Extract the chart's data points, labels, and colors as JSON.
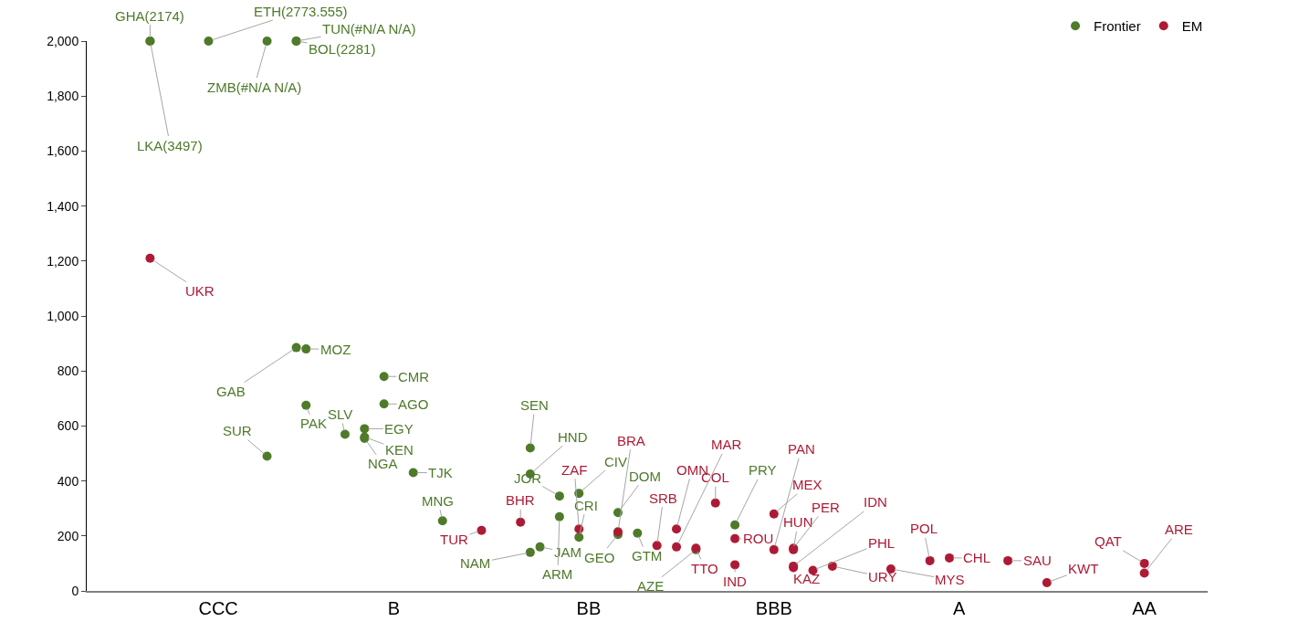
{
  "chart_data": {
    "type": "scatter",
    "legend": "top right",
    "marker": "circle",
    "grid": false,
    "categories": [
      null,
      null,
      null,
      null,
      null,
      null,
      null,
      null,
      null,
      null,
      null,
      null,
      null,
      "CCC",
      null,
      null,
      null,
      null,
      null,
      null,
      null,
      null,
      null,
      null,
      null,
      null,
      null,
      null,
      null,
      null,
      null,
      "B",
      null,
      null,
      null,
      null,
      null,
      null,
      null,
      null,
      null,
      null,
      null,
      null,
      null,
      null,
      null,
      null,
      null,
      null,
      null,
      "BB",
      null,
      null,
      null,
      null,
      null,
      null,
      null,
      null,
      null,
      null,
      null,
      null,
      null,
      null,
      null,
      null,
      null,
      null,
      "BBB",
      null,
      null,
      null,
      null,
      null,
      null,
      null,
      null,
      null,
      null,
      null,
      null,
      null,
      null,
      null,
      null,
      null,
      null,
      "A",
      null,
      null,
      null,
      null,
      null,
      null,
      null,
      null,
      null,
      null,
      null,
      null,
      null,
      null,
      null,
      null,
      null,
      null,
      "AA",
      null,
      null,
      null,
      null,
      null,
      null
    ],
    "ylim": [
      0,
      2000
    ],
    "yticks": [
      0,
      200,
      400,
      600,
      800,
      {
        "value": 1000,
        "label": "1,000"
      },
      {
        "value": 1200,
        "label": "1,200"
      },
      {
        "value": 1400,
        "label": "1,400"
      },
      {
        "value": 1600,
        "label": "1,600"
      },
      {
        "value": 1800,
        "label": "1,800"
      },
      {
        "value": 2000,
        "label": "2,000"
      }
    ],
    "series": [
      {
        "name": "Frontier",
        "color": "#4e7a2a",
        "values": [
          null,
          null,
          null,
          null,
          null,
          null,
          2000,
          null,
          null,
          null,
          null,
          null,
          2000,
          null,
          null,
          null,
          null,
          null,
          2000,
          null,
          null,
          2000,
          880,
          null,
          null,
          null,
          570,
          null,
          590,
          null,
          680,
          null,
          null,
          430,
          null,
          null,
          255,
          null,
          null,
          null,
          null,
          null,
          null,
          null,
          null,
          520,
          160,
          null,
          345,
          null,
          355,
          null,
          null,
          null,
          285,
          null,
          210,
          null,
          null,
          null,
          null,
          null,
          150,
          null,
          null,
          null,
          240,
          null,
          null,
          null,
          null,
          null,
          null,
          null,
          null,
          null,
          null,
          null,
          null,
          null,
          null,
          null,
          null,
          null,
          null,
          null,
          null,
          null,
          null,
          null,
          null,
          null,
          null,
          null,
          null,
          null,
          null,
          null,
          null,
          null,
          null,
          null,
          null,
          null,
          null,
          null,
          null,
          null,
          null,
          null,
          null,
          null,
          null,
          null,
          null
        ],
        "value_labels": [
          null,
          null,
          null,
          null,
          null,
          null,
          "GHA(2174)",
          null,
          null,
          null,
          null,
          null,
          "ETH(2773.555)",
          null,
          null,
          null,
          null,
          null,
          "ZMB(#N/A N/A)",
          null,
          null,
          "BOL(2281)",
          "MOZ",
          null,
          null,
          null,
          "SLV",
          null,
          "EGY",
          null,
          "AGO",
          null,
          null,
          "TJK",
          null,
          null,
          "MNG",
          null,
          null,
          null,
          null,
          null,
          null,
          null,
          null,
          "SEN",
          "JAM",
          null,
          "JOR",
          null,
          "CIV",
          null,
          null,
          null,
          "DOM",
          null,
          "GTM",
          null,
          null,
          null,
          null,
          null,
          "AZE",
          null,
          null,
          null,
          "PRY",
          null,
          null,
          null,
          null,
          null,
          null,
          null,
          null,
          null,
          null,
          null,
          null,
          null,
          null,
          null,
          null,
          null,
          null,
          null,
          null,
          null,
          null,
          null,
          null,
          null,
          null,
          null,
          null,
          null,
          null,
          null,
          null,
          null,
          null,
          null,
          null,
          null,
          null,
          null,
          null,
          null,
          null,
          null,
          null,
          null,
          null,
          null,
          null
        ]
      },
      {
        "color": "#4e7a2a",
        "values": [
          null,
          null,
          null,
          null,
          null,
          null,
          2000,
          null,
          null,
          null,
          null,
          null,
          null,
          null,
          null,
          null,
          null,
          null,
          490,
          null,
          null,
          2000,
          675,
          null,
          null,
          null,
          null,
          null,
          560,
          null,
          780,
          null,
          null,
          null,
          null,
          null,
          null,
          null,
          null,
          null,
          null,
          null,
          null,
          null,
          null,
          425,
          null,
          null,
          270,
          null,
          195,
          null,
          null,
          null,
          205,
          null,
          null,
          null,
          null,
          null,
          null,
          null,
          null,
          null,
          null,
          null,
          null,
          null,
          null,
          null,
          null,
          null,
          null,
          null,
          null,
          null,
          null,
          null,
          null,
          null,
          null,
          null,
          null,
          null,
          null,
          null,
          null,
          null,
          null,
          null,
          null,
          null,
          null,
          null,
          null,
          null,
          null,
          null,
          null,
          null,
          null,
          null,
          null,
          null,
          null,
          null,
          null,
          null,
          null,
          null,
          null,
          null,
          null,
          null,
          null
        ],
        "value_labels": [
          null,
          null,
          null,
          null,
          null,
          null,
          "LKA(3497)",
          null,
          null,
          null,
          null,
          null,
          null,
          null,
          null,
          null,
          null,
          null,
          "SUR",
          null,
          null,
          "TUN(#N/A N/A)",
          "PAK",
          null,
          null,
          null,
          null,
          null,
          "KEN",
          null,
          "CMR",
          null,
          null,
          null,
          null,
          null,
          null,
          null,
          null,
          null,
          null,
          null,
          null,
          null,
          null,
          "HND",
          null,
          null,
          "ARM",
          null,
          "CRI",
          null,
          null,
          null,
          "GEO",
          null,
          null,
          null,
          null,
          null,
          null,
          null,
          null,
          null,
          null,
          null,
          null,
          null,
          null,
          null,
          null,
          null,
          null,
          null,
          null,
          null,
          null,
          null,
          null,
          null,
          null,
          null,
          null,
          null,
          null,
          null,
          null,
          null,
          null,
          null,
          null,
          null,
          null,
          null,
          null,
          null,
          null,
          null,
          null,
          null,
          null,
          null,
          null,
          null,
          null,
          null,
          null,
          null,
          null,
          null,
          null,
          null,
          null,
          null,
          null
        ]
      },
      {
        "color": "#4e7a2a",
        "values": [
          null,
          null,
          null,
          null,
          null,
          null,
          null,
          null,
          null,
          null,
          null,
          null,
          null,
          null,
          null,
          null,
          null,
          null,
          null,
          null,
          null,
          885,
          null,
          null,
          null,
          null,
          null,
          null,
          555,
          null,
          null,
          null,
          null,
          null,
          null,
          null,
          null,
          null,
          null,
          null,
          null,
          null,
          null,
          null,
          null,
          140,
          null,
          null,
          null,
          null,
          null,
          null,
          null,
          null,
          null,
          null,
          null,
          null,
          null,
          null,
          null,
          null,
          null,
          null,
          null,
          null,
          null,
          null,
          null,
          null,
          null,
          null,
          null,
          null,
          null,
          null,
          null,
          null,
          null,
          null,
          null,
          null,
          null,
          null,
          null,
          null,
          null,
          null,
          null,
          null,
          null,
          null,
          null,
          null,
          null,
          null,
          null,
          null,
          null,
          null,
          null,
          null,
          null,
          null,
          null,
          null,
          null,
          null,
          null,
          null,
          null,
          null,
          null,
          null,
          null
        ],
        "value_labels": [
          null,
          null,
          null,
          null,
          null,
          null,
          null,
          null,
          null,
          null,
          null,
          null,
          null,
          null,
          null,
          null,
          null,
          null,
          null,
          null,
          null,
          "GAB",
          null,
          null,
          null,
          null,
          null,
          null,
          "NGA",
          null,
          null,
          null,
          null,
          null,
          null,
          null,
          null,
          null,
          null,
          null,
          null,
          null,
          null,
          null,
          null,
          "NAM",
          null,
          null,
          null,
          null,
          null,
          null,
          null,
          null,
          null,
          null,
          null,
          null,
          null,
          null,
          null,
          null,
          null,
          null,
          null,
          null,
          null,
          null,
          null,
          null,
          null,
          null,
          null,
          null,
          null,
          null,
          null,
          null,
          null,
          null,
          null,
          null,
          null,
          null,
          null,
          null,
          null,
          null,
          null,
          null,
          null,
          null,
          null,
          null,
          null,
          null,
          null,
          null,
          null,
          null,
          null,
          null,
          null,
          null,
          null,
          null,
          null,
          null,
          null,
          null,
          null,
          null,
          null,
          null,
          null
        ]
      },
      {
        "name": "EM",
        "color": "#ad1a35",
        "values": [
          null,
          null,
          null,
          null,
          null,
          null,
          1210,
          null,
          null,
          null,
          null,
          null,
          null,
          null,
          null,
          null,
          null,
          null,
          null,
          null,
          null,
          null,
          null,
          null,
          null,
          null,
          null,
          null,
          null,
          null,
          null,
          null,
          null,
          null,
          null,
          null,
          null,
          null,
          null,
          null,
          220,
          null,
          null,
          null,
          250,
          null,
          null,
          null,
          null,
          null,
          225,
          null,
          null,
          null,
          215,
          null,
          null,
          null,
          165,
          null,
          225,
          null,
          155,
          null,
          320,
          null,
          190,
          null,
          null,
          null,
          280,
          null,
          150,
          null,
          75,
          null,
          90,
          null,
          null,
          null,
          null,
          null,
          80,
          null,
          null,
          null,
          110,
          null,
          120,
          null,
          null,
          null,
          null,
          null,
          110,
          null,
          null,
          null,
          30,
          null,
          null,
          null,
          null,
          null,
          null,
          null,
          null,
          null,
          100,
          null,
          null,
          null,
          null,
          null,
          null
        ],
        "value_labels": [
          null,
          null,
          null,
          null,
          null,
          null,
          "UKR",
          null,
          null,
          null,
          null,
          null,
          null,
          null,
          null,
          null,
          null,
          null,
          null,
          null,
          null,
          null,
          null,
          null,
          null,
          null,
          null,
          null,
          null,
          null,
          null,
          null,
          null,
          null,
          null,
          null,
          null,
          null,
          null,
          null,
          "TUR",
          null,
          null,
          null,
          "BHR",
          null,
          null,
          null,
          null,
          null,
          "ZAF",
          null,
          null,
          null,
          "BRA",
          null,
          null,
          null,
          "SRB",
          null,
          "OMN",
          null,
          "TTO",
          null,
          "COL",
          null,
          "ROU",
          null,
          null,
          null,
          "MEX",
          null,
          "HUN",
          null,
          "PHL",
          null,
          "URY",
          null,
          null,
          null,
          null,
          null,
          "MYS",
          null,
          null,
          null,
          "POL",
          null,
          "CHL",
          null,
          null,
          null,
          null,
          null,
          "SAU",
          null,
          null,
          null,
          "KWT",
          null,
          null,
          null,
          null,
          null,
          null,
          null,
          null,
          null,
          "QAT",
          null,
          null,
          null,
          null,
          null,
          null
        ]
      },
      {
        "color": "#ad1a35",
        "values": [
          null,
          null,
          null,
          null,
          null,
          null,
          null,
          null,
          null,
          null,
          null,
          null,
          null,
          null,
          null,
          null,
          null,
          null,
          null,
          null,
          null,
          null,
          null,
          null,
          null,
          null,
          null,
          null,
          null,
          null,
          null,
          null,
          null,
          null,
          null,
          null,
          null,
          null,
          null,
          null,
          null,
          null,
          null,
          null,
          null,
          null,
          null,
          null,
          null,
          null,
          null,
          null,
          null,
          null,
          null,
          null,
          null,
          null,
          null,
          null,
          160,
          null,
          null,
          null,
          null,
          null,
          95,
          null,
          null,
          null,
          150,
          null,
          155,
          null,
          null,
          null,
          null,
          null,
          null,
          null,
          null,
          null,
          null,
          null,
          null,
          null,
          null,
          null,
          null,
          null,
          null,
          null,
          null,
          null,
          null,
          null,
          null,
          null,
          null,
          null,
          null,
          null,
          null,
          null,
          null,
          null,
          null,
          null,
          65,
          null,
          null,
          null,
          null,
          null,
          null
        ],
        "value_labels": [
          null,
          null,
          null,
          null,
          null,
          null,
          null,
          null,
          null,
          null,
          null,
          null,
          null,
          null,
          null,
          null,
          null,
          null,
          null,
          null,
          null,
          null,
          null,
          null,
          null,
          null,
          null,
          null,
          null,
          null,
          null,
          null,
          null,
          null,
          null,
          null,
          null,
          null,
          null,
          null,
          null,
          null,
          null,
          null,
          null,
          null,
          null,
          null,
          null,
          null,
          null,
          null,
          null,
          null,
          null,
          null,
          null,
          null,
          null,
          null,
          "MAR",
          null,
          null,
          null,
          null,
          null,
          "IND",
          null,
          null,
          null,
          "PAN",
          null,
          "PER",
          null,
          null,
          null,
          null,
          null,
          null,
          null,
          null,
          null,
          null,
          null,
          null,
          null,
          null,
          null,
          null,
          null,
          null,
          null,
          null,
          null,
          null,
          null,
          null,
          null,
          null,
          null,
          null,
          null,
          null,
          null,
          null,
          null,
          null,
          null,
          "ARE",
          null,
          null,
          null,
          null,
          null,
          null
        ]
      },
      {
        "color": "#ad1a35",
        "values": [
          null,
          null,
          null,
          null,
          null,
          null,
          null,
          null,
          null,
          null,
          null,
          null,
          null,
          null,
          null,
          null,
          null,
          null,
          null,
          null,
          null,
          null,
          null,
          null,
          null,
          null,
          null,
          null,
          null,
          null,
          null,
          null,
          null,
          null,
          null,
          null,
          null,
          null,
          null,
          null,
          null,
          null,
          null,
          null,
          null,
          null,
          null,
          null,
          null,
          null,
          null,
          null,
          null,
          null,
          null,
          null,
          null,
          null,
          null,
          null,
          null,
          null,
          null,
          null,
          null,
          null,
          null,
          null,
          null,
          null,
          null,
          null,
          85,
          null,
          null,
          null,
          null,
          null,
          null,
          null,
          null,
          null,
          null,
          null,
          null,
          null,
          null,
          null,
          null,
          null,
          null,
          null,
          null,
          null,
          null,
          null,
          null,
          null,
          null,
          null,
          null,
          null,
          null,
          null,
          null,
          null,
          null,
          null,
          null,
          null,
          null,
          null,
          null,
          null,
          null
        ],
        "value_labels": [
          null,
          null,
          null,
          null,
          null,
          null,
          null,
          null,
          null,
          null,
          null,
          null,
          null,
          null,
          null,
          null,
          null,
          null,
          null,
          null,
          null,
          null,
          null,
          null,
          null,
          null,
          null,
          null,
          null,
          null,
          null,
          null,
          null,
          null,
          null,
          null,
          null,
          null,
          null,
          null,
          null,
          null,
          null,
          null,
          null,
          null,
          null,
          null,
          null,
          null,
          null,
          null,
          null,
          null,
          null,
          null,
          null,
          null,
          null,
          null,
          null,
          null,
          null,
          null,
          null,
          null,
          null,
          null,
          null,
          null,
          null,
          null,
          "KAZ",
          null,
          null,
          null,
          null,
          null,
          null,
          null,
          null,
          null,
          null,
          null,
          null,
          null,
          null,
          null,
          null,
          null,
          null,
          null,
          null,
          null,
          null,
          null,
          null,
          null,
          null,
          null,
          null,
          null,
          null,
          null,
          null,
          null,
          null,
          null,
          null,
          null,
          null,
          null,
          null,
          null,
          null
        ]
      },
      {
        "color": "#ad1a35",
        "values": [
          null,
          null,
          null,
          null,
          null,
          null,
          null,
          null,
          null,
          null,
          null,
          null,
          null,
          null,
          null,
          null,
          null,
          null,
          null,
          null,
          null,
          null,
          null,
          null,
          null,
          null,
          null,
          null,
          null,
          null,
          null,
          null,
          null,
          null,
          null,
          null,
          null,
          null,
          null,
          null,
          null,
          null,
          null,
          null,
          null,
          null,
          null,
          null,
          null,
          null,
          null,
          null,
          null,
          null,
          null,
          null,
          null,
          null,
          null,
          null,
          null,
          null,
          null,
          null,
          null,
          null,
          null,
          null,
          null,
          null,
          null,
          null,
          90,
          null,
          null,
          null,
          null,
          null,
          null,
          null,
          null,
          null,
          null,
          null,
          null,
          null,
          null,
          null,
          null,
          null,
          null,
          null,
          null,
          null,
          null,
          null,
          null,
          null,
          null,
          null,
          null,
          null,
          null,
          null,
          null,
          null,
          null,
          null,
          null,
          null,
          null,
          null,
          null,
          null,
          null
        ],
        "value_labels": [
          null,
          null,
          null,
          null,
          null,
          null,
          null,
          null,
          null,
          null,
          null,
          null,
          null,
          null,
          null,
          null,
          null,
          null,
          null,
          null,
          null,
          null,
          null,
          null,
          null,
          null,
          null,
          null,
          null,
          null,
          null,
          null,
          null,
          null,
          null,
          null,
          null,
          null,
          null,
          null,
          null,
          null,
          null,
          null,
          null,
          null,
          null,
          null,
          null,
          null,
          null,
          null,
          null,
          null,
          null,
          null,
          null,
          null,
          null,
          null,
          null,
          null,
          null,
          null,
          null,
          null,
          null,
          null,
          null,
          null,
          null,
          null,
          "IDN",
          null,
          null,
          null,
          null,
          null,
          null,
          null,
          null,
          null,
          null,
          null,
          null,
          null,
          null,
          null,
          null,
          null,
          null,
          null,
          null,
          null,
          null,
          null,
          null,
          null,
          null,
          null,
          null,
          null,
          null,
          null,
          null,
          null,
          null,
          null,
          null,
          null,
          null,
          null,
          null,
          null,
          null
        ]
      }
    ]
  }
}
